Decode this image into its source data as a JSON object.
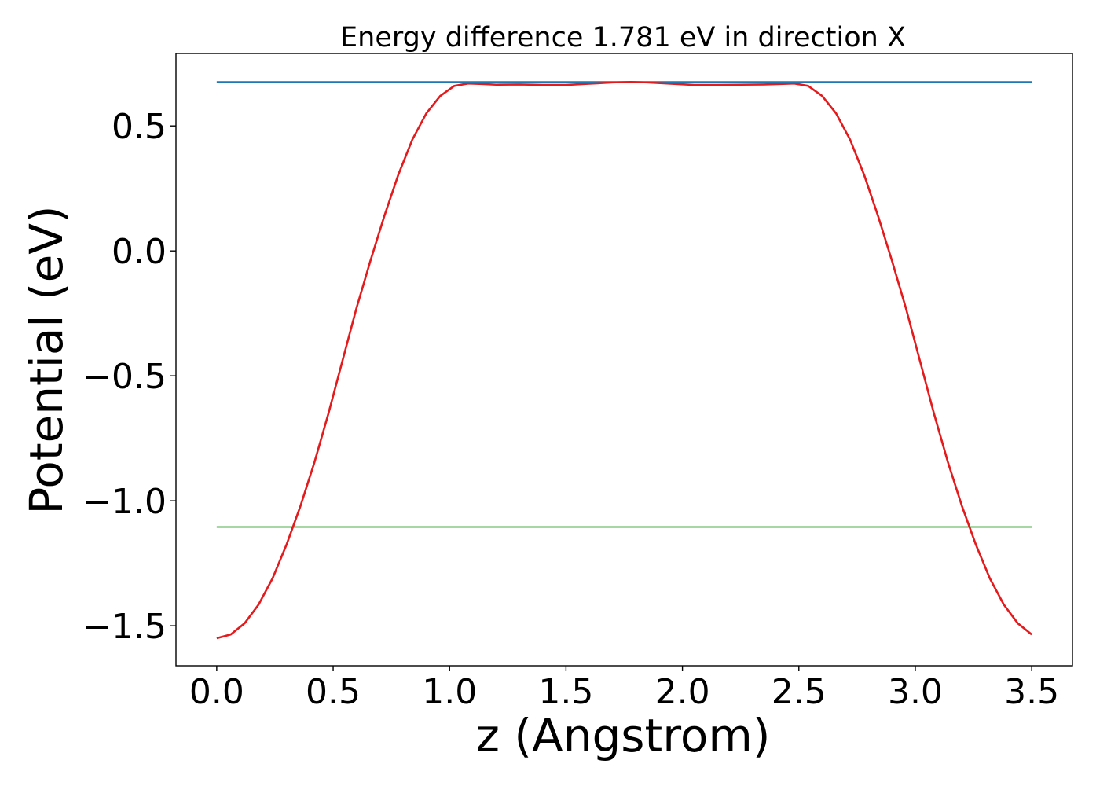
{
  "chart_data": {
    "type": "line",
    "title": "Energy difference 1.781 eV in direction X",
    "xlabel": "z (Angstrom)",
    "ylabel": "Potential (eV)",
    "xlim": [
      -0.175,
      3.675
    ],
    "ylim": [
      -1.66,
      0.79
    ],
    "xticks": [
      "0.0",
      "0.5",
      "1.0",
      "1.5",
      "2.0",
      "2.5",
      "3.0",
      "3.5"
    ],
    "yticks": [
      "0.5",
      "0.0",
      "−0.5",
      "−1.0",
      "−1.5"
    ],
    "grid": false,
    "legend": "none",
    "colors": {
      "potential": "#e41a1c",
      "upper": "#1f77b4",
      "lower": "#4daf4a"
    },
    "series": [
      {
        "x": [
          0.0,
          0.06,
          0.12,
          0.18,
          0.24,
          0.3,
          0.36,
          0.42,
          0.48,
          0.54,
          0.6,
          0.66,
          0.72,
          0.78,
          0.84,
          0.9,
          0.96,
          1.02,
          1.08,
          1.14,
          1.2,
          1.3,
          1.4,
          1.5,
          1.6,
          1.7,
          1.78,
          1.85,
          1.95,
          2.05,
          2.15,
          2.25,
          2.35,
          2.42,
          2.48,
          2.54,
          2.6,
          2.66,
          2.72,
          2.78,
          2.84,
          2.9,
          2.96,
          3.02,
          3.08,
          3.14,
          3.2,
          3.26,
          3.32,
          3.38,
          3.44,
          3.5
        ],
        "values": [
          -1.55,
          -1.535,
          -1.49,
          -1.415,
          -1.31,
          -1.175,
          -1.02,
          -0.845,
          -0.65,
          -0.44,
          -0.23,
          -0.04,
          0.14,
          0.305,
          0.445,
          0.55,
          0.62,
          0.66,
          0.67,
          0.668,
          0.665,
          0.666,
          0.664,
          0.664,
          0.669,
          0.674,
          0.676,
          0.674,
          0.669,
          0.664,
          0.664,
          0.665,
          0.666,
          0.668,
          0.67,
          0.66,
          0.62,
          0.55,
          0.445,
          0.305,
          0.14,
          -0.04,
          -0.23,
          -0.44,
          -0.65,
          -0.845,
          -1.02,
          -1.175,
          -1.31,
          -1.415,
          -1.49,
          -1.535
        ]
      },
      {
        "x": [
          0.0,
          3.5
        ],
        "values": [
          0.676,
          0.676
        ]
      },
      {
        "x": [
          0.0,
          3.5
        ],
        "values": [
          -1.105,
          -1.105
        ]
      }
    ]
  }
}
